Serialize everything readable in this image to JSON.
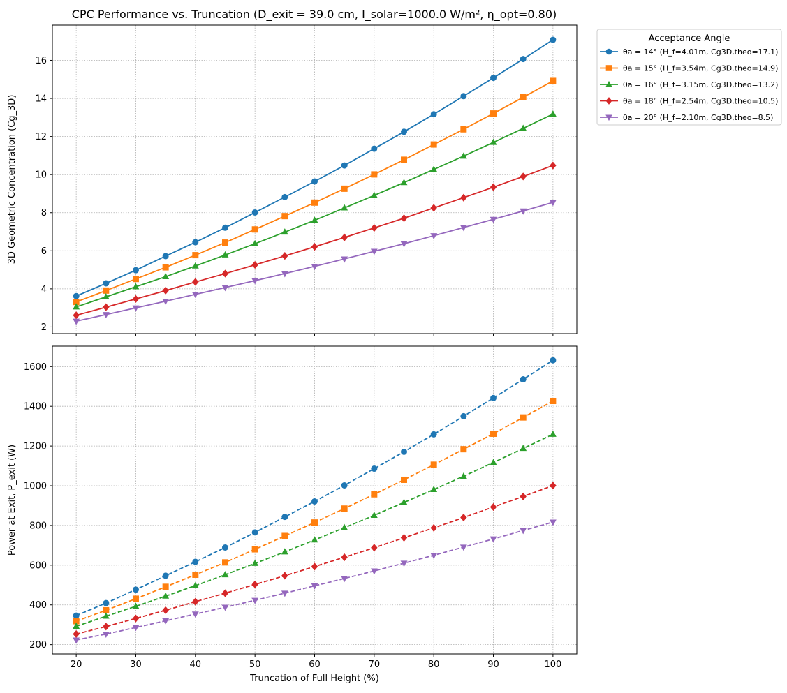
{
  "figure": {
    "title": "CPC Performance vs. Truncation (D_exit = 39.0 cm, I_solar=1000.0 W/m², η_opt=0.80)"
  },
  "legend": {
    "title": "Acceptance Angle",
    "placement": "outside upper right"
  },
  "chart_data": [
    {
      "type": "line",
      "title": "CPC Performance vs. Truncation (D_exit = 39.0 cm, I_solar=1000.0 W/m², η_opt=0.80)",
      "xlabel": "",
      "ylabel": "3D Geometric Concentration (Cg_3D)",
      "xlim": [
        16,
        104
      ],
      "ylim": [
        1.65,
        17.85
      ],
      "xticks": [
        20,
        30,
        40,
        50,
        60,
        70,
        80,
        90,
        100
      ],
      "yticks": [
        2,
        4,
        6,
        8,
        10,
        12,
        14,
        16
      ],
      "grid": true,
      "line_style": "solid",
      "x": [
        20,
        25,
        30,
        35,
        40,
        45,
        50,
        55,
        60,
        65,
        70,
        75,
        80,
        85,
        90,
        95,
        100
      ],
      "series": [
        {
          "name": "θa = 14° (H_f=4.01m, Cg3D,theo=17.1)",
          "color": "#1f77b4",
          "marker": "circle",
          "values": [
            3.62,
            4.29,
            4.98,
            5.72,
            6.45,
            7.21,
            8.01,
            8.82,
            9.64,
            10.48,
            11.36,
            12.25,
            13.17,
            14.12,
            15.08,
            16.07,
            17.08
          ]
        },
        {
          "name": "θa = 15° (H_f=3.54m, Cg3D,theo=14.9)",
          "color": "#ff7f0e",
          "marker": "square",
          "values": [
            3.31,
            3.91,
            4.52,
            5.13,
            5.77,
            6.43,
            7.12,
            7.82,
            8.53,
            9.26,
            10.01,
            10.78,
            11.58,
            12.38,
            13.21,
            14.06,
            14.92
          ]
        },
        {
          "name": "θa = 16° (H_f=3.15m, Cg3D,theo=13.2)",
          "color": "#2ca02c",
          "marker": "triangle-up",
          "values": [
            3.05,
            3.58,
            4.11,
            4.64,
            5.2,
            5.78,
            6.37,
            6.98,
            7.6,
            8.25,
            8.91,
            9.58,
            10.27,
            10.97,
            11.69,
            12.43,
            13.18
          ]
        },
        {
          "name": "θa = 18° (H_f=2.54m, Cg3D,theo=10.5)",
          "color": "#d62728",
          "marker": "diamond",
          "values": [
            2.61,
            3.04,
            3.47,
            3.91,
            4.36,
            4.8,
            5.26,
            5.73,
            6.21,
            6.7,
            7.2,
            7.71,
            8.25,
            8.79,
            9.34,
            9.9,
            10.48
          ]
        },
        {
          "name": "θa = 20° (H_f=2.10m, Cg3D,theo=8.5)",
          "color": "#9467bd",
          "marker": "triangle-down",
          "values": [
            2.3,
            2.65,
            3.0,
            3.35,
            3.71,
            4.07,
            4.43,
            4.8,
            5.18,
            5.57,
            5.97,
            6.37,
            6.79,
            7.22,
            7.65,
            8.09,
            8.54
          ]
        }
      ]
    },
    {
      "type": "line",
      "title": "",
      "xlabel": "Truncation of Full Height (%)",
      "ylabel": "Power at Exit, P_exit (W)",
      "xlim": [
        16,
        104
      ],
      "ylim": [
        153,
        1703
      ],
      "xticks": [
        20,
        30,
        40,
        50,
        60,
        70,
        80,
        90,
        100
      ],
      "yticks": [
        200,
        400,
        600,
        800,
        1000,
        1200,
        1400,
        1600
      ],
      "grid": true,
      "line_style": "dashed",
      "x": [
        20,
        25,
        30,
        35,
        40,
        45,
        50,
        55,
        60,
        65,
        70,
        75,
        80,
        85,
        90,
        95,
        100
      ],
      "series": [
        {
          "name": "θa = 14° (H_f=4.01m, Cg3D,theo=17.1)",
          "color": "#1f77b4",
          "marker": "circle",
          "values": [
            346,
            409,
            477,
            547,
            617,
            689,
            765,
            843,
            921,
            1002,
            1086,
            1171,
            1259,
            1350,
            1442,
            1536,
            1632
          ]
        },
        {
          "name": "θa = 15° (H_f=3.54m, Cg3D,theo=14.9)",
          "color": "#ff7f0e",
          "marker": "square",
          "values": [
            318,
            373,
            431,
            491,
            552,
            614,
            680,
            747,
            815,
            885,
            957,
            1030,
            1106,
            1184,
            1262,
            1344,
            1427
          ]
        },
        {
          "name": "θa = 16° (H_f=3.15m, Cg3D,theo=13.2)",
          "color": "#2ca02c",
          "marker": "triangle-up",
          "values": [
            292,
            343,
            393,
            444,
            497,
            552,
            609,
            667,
            727,
            789,
            851,
            916,
            981,
            1048,
            1117,
            1188,
            1259
          ]
        },
        {
          "name": "θa = 18° (H_f=2.54m, Cg3D,theo=10.5)",
          "color": "#d62728",
          "marker": "diamond",
          "values": [
            253,
            291,
            332,
            373,
            416,
            459,
            503,
            547,
            593,
            640,
            688,
            738,
            788,
            840,
            893,
            946,
            1001
          ]
        },
        {
          "name": "θa = 20° (H_f=2.10m, Cg3D,theo=8.5)",
          "color": "#9467bd",
          "marker": "triangle-down",
          "values": [
            223,
            253,
            286,
            320,
            354,
            388,
            423,
            459,
            496,
            533,
            571,
            610,
            650,
            691,
            732,
            775,
            817
          ]
        }
      ]
    }
  ]
}
